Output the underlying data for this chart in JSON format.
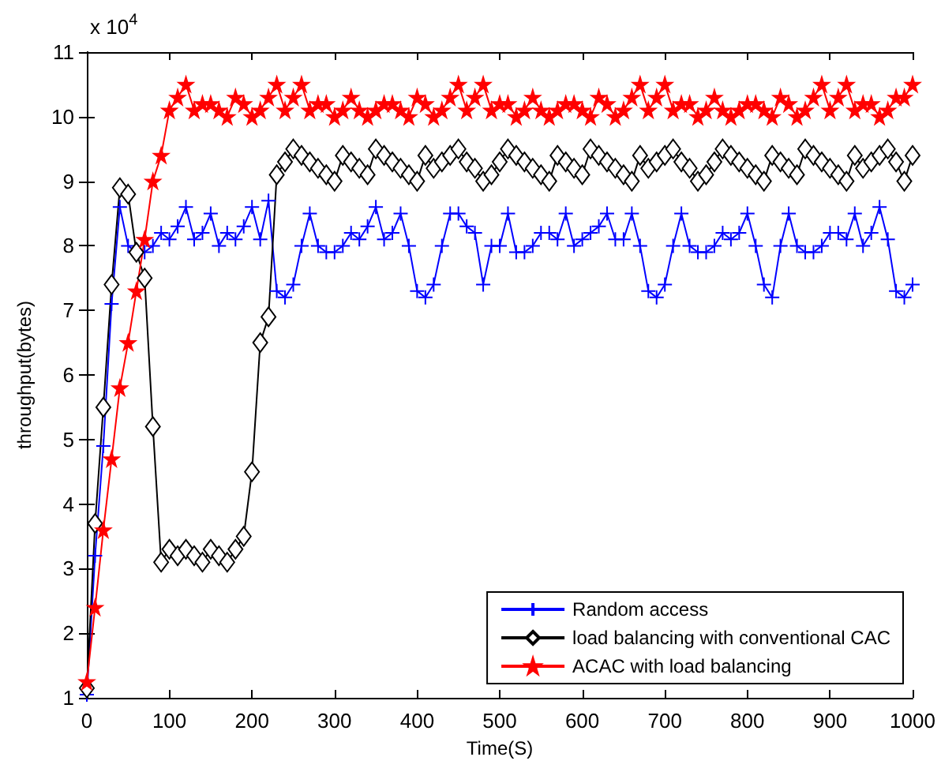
{
  "chart_data": {
    "type": "line",
    "xlabel": "Time(S)",
    "ylabel": "throughput(bytes)",
    "annotations": [
      "x 10$^{4}$"
    ],
    "x": [
      0,
      10,
      20,
      30,
      40,
      50,
      60,
      70,
      80,
      90,
      100,
      110,
      120,
      130,
      140,
      150,
      160,
      170,
      180,
      190,
      200,
      210,
      220,
      230,
      240,
      250,
      260,
      270,
      280,
      290,
      300,
      310,
      320,
      330,
      340,
      350,
      360,
      370,
      380,
      390,
      400,
      410,
      420,
      430,
      440,
      450,
      460,
      470,
      480,
      490,
      500,
      510,
      520,
      530,
      540,
      550,
      560,
      570,
      580,
      590,
      600,
      610,
      620,
      630,
      640,
      650,
      660,
      670,
      680,
      690,
      700,
      710,
      720,
      730,
      740,
      750,
      760,
      770,
      780,
      790,
      800,
      810,
      820,
      830,
      840,
      850,
      860,
      870,
      880,
      890,
      900,
      910,
      920,
      930,
      940,
      950,
      960,
      970,
      980,
      990,
      1000
    ],
    "series": [
      {
        "name": "Random access",
        "color": "#0000ff",
        "marker": "cross",
        "values": [
          1.05,
          3.2,
          4.9,
          7.1,
          8.6,
          8.0,
          7.9,
          7.9,
          8.0,
          8.2,
          8.1,
          8.3,
          8.6,
          8.1,
          8.2,
          8.5,
          8.0,
          8.2,
          8.1,
          8.3,
          8.6,
          8.1,
          8.7,
          7.3,
          7.2,
          7.4,
          8.0,
          8.5,
          8.0,
          7.9,
          7.9,
          8.0,
          8.2,
          8.1,
          8.3,
          8.6,
          8.1,
          8.2,
          8.5,
          8.0,
          7.3,
          7.2,
          7.4,
          8.0,
          8.5,
          8.5,
          8.3,
          8.2,
          7.4,
          8.0,
          8.0,
          8.5,
          7.9,
          7.9,
          8.0,
          8.2,
          8.2,
          8.1,
          8.5,
          8.0,
          8.1,
          8.2,
          8.3,
          8.5,
          8.1,
          8.1,
          8.5,
          8.0,
          7.3,
          7.2,
          7.4,
          8.0,
          8.5,
          8.0,
          7.9,
          7.9,
          8.0,
          8.2,
          8.1,
          8.2,
          8.5,
          8.0,
          7.4,
          7.2,
          8.0,
          8.5,
          8.0,
          7.9,
          7.9,
          8.0,
          8.2,
          8.2,
          8.1,
          8.5,
          8.0,
          8.2,
          8.6,
          8.1,
          7.3,
          7.2,
          7.4
        ]
      },
      {
        "name": "load balancing with conventional CAC",
        "color": "#000000",
        "marker": "diamond",
        "values": [
          1.15,
          3.7,
          5.5,
          7.4,
          8.9,
          8.8,
          7.9,
          7.5,
          5.2,
          3.1,
          3.3,
          3.2,
          3.3,
          3.2,
          3.1,
          3.3,
          3.2,
          3.1,
          3.3,
          3.5,
          4.5,
          6.5,
          6.9,
          9.1,
          9.3,
          9.5,
          9.4,
          9.3,
          9.2,
          9.1,
          9.0,
          9.4,
          9.3,
          9.2,
          9.1,
          9.5,
          9.4,
          9.3,
          9.2,
          9.1,
          9.0,
          9.4,
          9.2,
          9.3,
          9.4,
          9.5,
          9.3,
          9.2,
          9.0,
          9.1,
          9.3,
          9.5,
          9.4,
          9.3,
          9.2,
          9.1,
          9.0,
          9.4,
          9.3,
          9.2,
          9.1,
          9.5,
          9.4,
          9.3,
          9.2,
          9.1,
          9.0,
          9.4,
          9.2,
          9.3,
          9.4,
          9.5,
          9.3,
          9.2,
          9.0,
          9.1,
          9.3,
          9.5,
          9.4,
          9.3,
          9.2,
          9.1,
          9.0,
          9.4,
          9.3,
          9.2,
          9.1,
          9.5,
          9.4,
          9.3,
          9.2,
          9.1,
          9.0,
          9.4,
          9.2,
          9.3,
          9.4,
          9.5,
          9.3,
          9.0,
          9.4
        ]
      },
      {
        "name": "ACAC with load balancing",
        "color": "#ff0000",
        "marker": "star",
        "values": [
          1.25,
          2.4,
          3.6,
          4.7,
          5.8,
          6.5,
          7.3,
          8.1,
          9.0,
          9.4,
          10.1,
          10.3,
          10.5,
          10.1,
          10.2,
          10.2,
          10.1,
          10.0,
          10.3,
          10.2,
          10.0,
          10.1,
          10.3,
          10.5,
          10.1,
          10.3,
          10.5,
          10.1,
          10.2,
          10.2,
          10.0,
          10.1,
          10.3,
          10.1,
          10.0,
          10.1,
          10.2,
          10.2,
          10.1,
          10.0,
          10.3,
          10.2,
          10.0,
          10.1,
          10.3,
          10.5,
          10.1,
          10.3,
          10.5,
          10.1,
          10.2,
          10.2,
          10.0,
          10.1,
          10.3,
          10.1,
          10.0,
          10.1,
          10.2,
          10.2,
          10.1,
          10.0,
          10.3,
          10.2,
          10.0,
          10.1,
          10.3,
          10.5,
          10.1,
          10.3,
          10.5,
          10.1,
          10.2,
          10.2,
          10.0,
          10.1,
          10.3,
          10.1,
          10.0,
          10.1,
          10.2,
          10.2,
          10.1,
          10.0,
          10.3,
          10.2,
          10.0,
          10.1,
          10.3,
          10.5,
          10.1,
          10.3,
          10.5,
          10.1,
          10.2,
          10.2,
          10.0,
          10.1,
          10.3,
          10.3,
          10.5
        ]
      }
    ],
    "xlim": [
      0,
      1000
    ],
    "xticks": [
      0,
      100,
      200,
      300,
      400,
      500,
      600,
      700,
      800,
      900,
      1000
    ],
    "ylim": [
      1,
      11
    ],
    "yticks": [
      1,
      2,
      3,
      4,
      5,
      6,
      7,
      8,
      9,
      10,
      11
    ],
    "legend": "bottom right",
    "grid": false,
    "line_style": "solid"
  }
}
